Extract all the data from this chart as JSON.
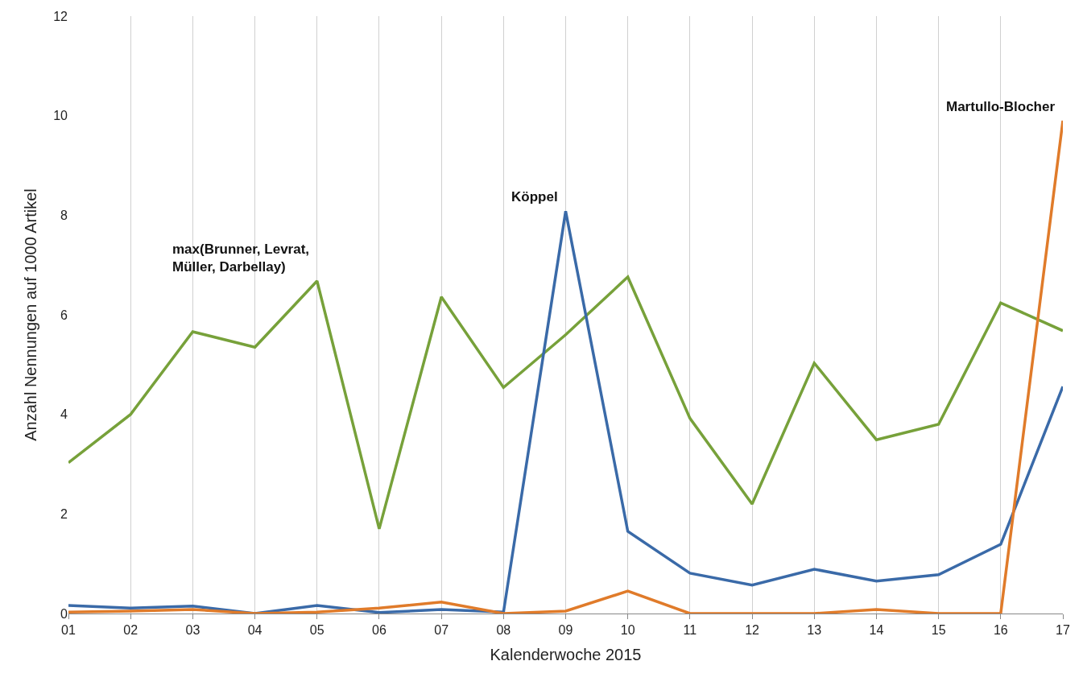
{
  "chart_data": {
    "type": "line",
    "xlabel": "Kalenderwoche 2015",
    "ylabel": "Anzahl Nennungen auf 1000 Artikel",
    "categories": [
      "01",
      "02",
      "03",
      "04",
      "05",
      "06",
      "07",
      "08",
      "09",
      "10",
      "11",
      "12",
      "13",
      "14",
      "15",
      "16",
      "17"
    ],
    "series": [
      {
        "color": "#77a13a",
        "values": [
          3.03,
          4.0,
          5.66,
          5.35,
          6.68,
          1.7,
          6.36,
          4.54,
          5.6,
          6.76,
          3.92,
          2.2,
          5.03,
          3.49,
          3.8,
          6.24,
          5.68
        ]
      },
      {
        "color": "#3a6aa8",
        "values": [
          0.16,
          0.11,
          0.15,
          0,
          0.16,
          0.02,
          0.08,
          0.03,
          8.08,
          1.65,
          0.81,
          0.57,
          0.89,
          0.65,
          0.78,
          1.39,
          4.56
        ]
      },
      {
        "color": "#e07b2a",
        "values": [
          0.03,
          0.05,
          0.08,
          0,
          0.03,
          0.11,
          0.23,
          0,
          0.05,
          0.45,
          0,
          0,
          0,
          0.08,
          0,
          0,
          9.9
        ]
      }
    ],
    "annotations": [
      {
        "text": "max(Brunner, Levrat, Müller, Darbellay)",
        "x": "05",
        "y": 6.68
      },
      {
        "text": "Köppel",
        "x": "09",
        "y": 8.08
      },
      {
        "text": "Martullo-Blocher",
        "x": "17",
        "y": 9.9
      }
    ],
    "ylim": [
      0,
      12
    ],
    "yticks": [
      0,
      2,
      4,
      6,
      8,
      10,
      12
    ],
    "grid": "x",
    "marker": "none",
    "line_style": "solid"
  }
}
